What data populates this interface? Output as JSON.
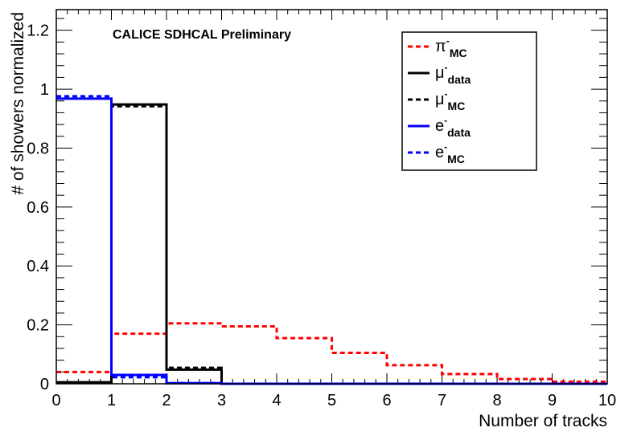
{
  "chart_data": {
    "type": "histogram",
    "annotation": "CALICE SDHCAL Preliminary",
    "xlabel": "Number of tracks",
    "ylabel": "# of showers normalized",
    "xlim": [
      0,
      10
    ],
    "ylim": [
      0,
      1.27
    ],
    "xticks": [
      "0",
      "1",
      "2",
      "3",
      "4",
      "5",
      "6",
      "7",
      "8",
      "9",
      "10"
    ],
    "yticks": [
      "0",
      "0.2",
      "0.4",
      "0.6",
      "0.8",
      "1",
      "1.2"
    ],
    "legend_position": "top-right",
    "bin_edges": [
      0,
      1,
      2,
      3,
      4,
      5,
      6,
      7,
      8,
      9,
      10
    ],
    "series": [
      {
        "name": "π⁻ MC",
        "label_main": "π",
        "label_sup": "-",
        "label_sub": "MC",
        "color": "#ff0000",
        "dash": true,
        "values": [
          0.04,
          0.17,
          0.205,
          0.195,
          0.155,
          0.105,
          0.063,
          0.033,
          0.016,
          0.007
        ]
      },
      {
        "name": "μ⁻ data",
        "label_main": "μ",
        "label_sup": "-",
        "label_sub": "data",
        "color": "#000000",
        "dash": false,
        "values": [
          0.005,
          0.948,
          0.048,
          0.0,
          0.0,
          0.0,
          0.0,
          0.0,
          0.0,
          0.0
        ]
      },
      {
        "name": "μ⁻ MC",
        "label_main": "μ",
        "label_sup": "-",
        "label_sub": "MC",
        "color": "#000000",
        "dash": true,
        "values": [
          0.004,
          0.942,
          0.054,
          0.0,
          0.0,
          0.0,
          0.0,
          0.0,
          0.0,
          0.0
        ]
      },
      {
        "name": "e⁻ data",
        "label_main": "e",
        "label_sup": "-",
        "label_sub": "data",
        "color": "#0000ff",
        "dash": false,
        "values": [
          0.968,
          0.03,
          0.002,
          0.0,
          0.0,
          0.0,
          0.0,
          0.0,
          0.0,
          0.0
        ]
      },
      {
        "name": "e⁻ MC",
        "label_main": "e",
        "label_sup": "-",
        "label_sub": "MC",
        "color": "#0000ff",
        "dash": true,
        "values": [
          0.976,
          0.022,
          0.002,
          0.0,
          0.0,
          0.0,
          0.0,
          0.0,
          0.0,
          0.0
        ]
      }
    ]
  }
}
